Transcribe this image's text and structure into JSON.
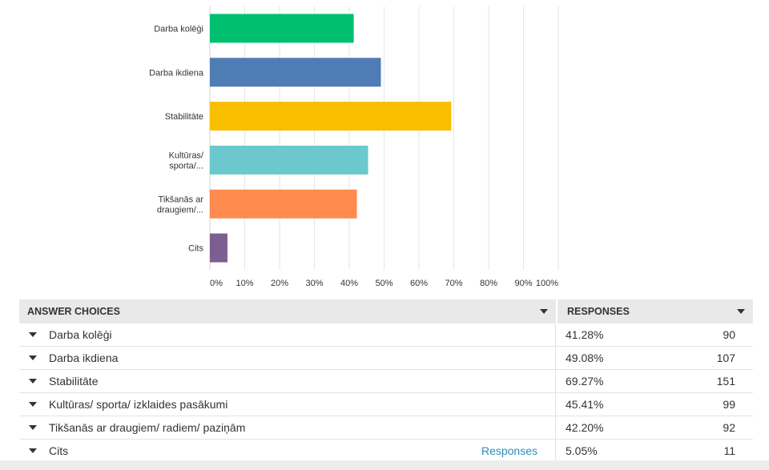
{
  "chart_data": {
    "type": "bar",
    "orientation": "horizontal",
    "categories": [
      "Darba kolēģi",
      "Darba ikdiena",
      "Stabilitāte",
      "Kultūras/ sporta/...",
      "Tikšanās ar draugiem/...",
      "Cits"
    ],
    "category_lines": [
      [
        "Darba kolēģi"
      ],
      [
        "Darba ikdiena"
      ],
      [
        "Stabilitāte"
      ],
      [
        "Kultūras/",
        "sporta/..."
      ],
      [
        "Tikšanās ar",
        "draugiem/..."
      ],
      [
        "Cits"
      ]
    ],
    "values": [
      41.28,
      49.08,
      69.27,
      45.41,
      42.2,
      5.05
    ],
    "colors": [
      "#00bf6f",
      "#507cb6",
      "#f9be00",
      "#6bc8cd",
      "#ff8b4f",
      "#7d5e90"
    ],
    "xlim": [
      0,
      100
    ],
    "x_ticks": [
      "0%",
      "10%",
      "20%",
      "30%",
      "40%",
      "50%",
      "60%",
      "70%",
      "80%",
      "90%",
      "100%"
    ],
    "grid": true
  },
  "table": {
    "header_answer": "ANSWER CHOICES",
    "header_responses": "RESPONSES",
    "rows": [
      {
        "label": "Darba kolēģi",
        "pct": "41.28%",
        "count": "90"
      },
      {
        "label": "Darba ikdiena",
        "pct": "49.08%",
        "count": "107"
      },
      {
        "label": "Stabilitāte",
        "pct": "69.27%",
        "count": "151"
      },
      {
        "label": "Kultūras/ sporta/ izklaides pasākumi",
        "pct": "45.41%",
        "count": "99"
      },
      {
        "label": "Tikšanās ar draugiem/ radiem/ paziņām",
        "pct": "42.20%",
        "count": "92"
      },
      {
        "label": "Cits",
        "pct": "5.05%",
        "count": "11",
        "link": "Responses"
      }
    ]
  }
}
